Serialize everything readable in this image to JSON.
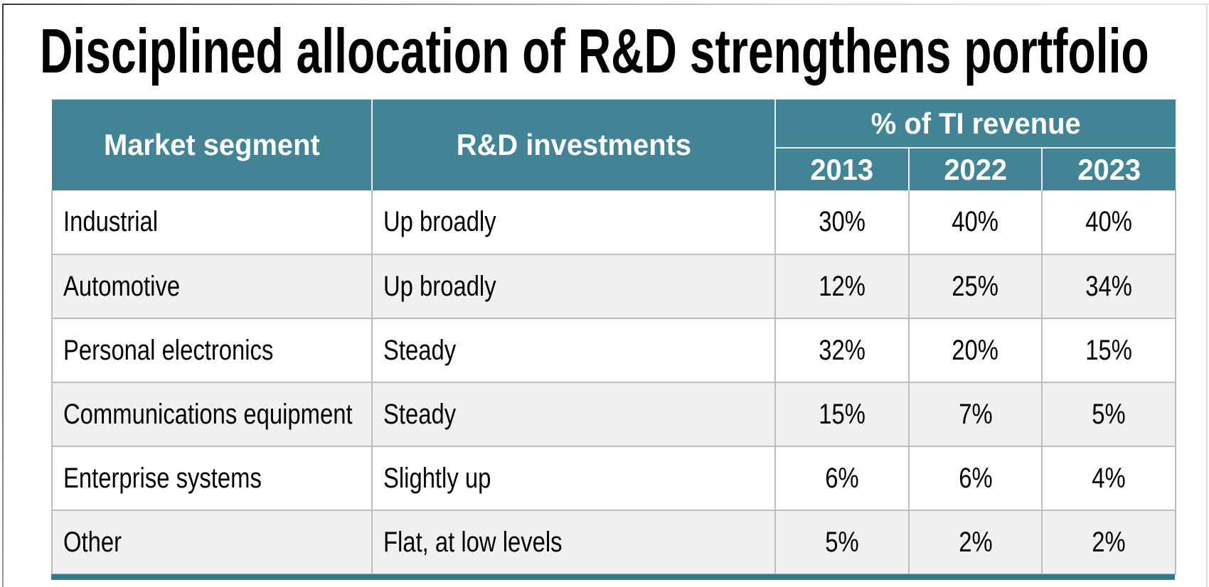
{
  "title": "Disciplined allocation of R&D strengthens portfolio",
  "table": {
    "header": {
      "market_segment": "Market segment",
      "rd_investments": "R&D investments",
      "revenue_group": "% of TI revenue",
      "years": [
        "2013",
        "2022",
        "2023"
      ]
    },
    "rows": [
      {
        "segment": "Industrial",
        "investment": "Up broadly",
        "values": [
          "30%",
          "40%",
          "40%"
        ]
      },
      {
        "segment": "Automotive",
        "investment": "Up broadly",
        "values": [
          "12%",
          "25%",
          "34%"
        ]
      },
      {
        "segment": "Personal electronics",
        "investment": "Steady",
        "values": [
          "32%",
          "20%",
          "15%"
        ]
      },
      {
        "segment": "Communications equipment",
        "investment": "Steady",
        "values": [
          "15%",
          "7%",
          "5%"
        ]
      },
      {
        "segment": "Enterprise systems",
        "investment": "Slightly up",
        "values": [
          "6%",
          "6%",
          "4%"
        ]
      },
      {
        "segment": "Other",
        "investment": "Flat, at low levels",
        "values": [
          "5%",
          "2%",
          "2%"
        ]
      }
    ]
  },
  "colors": {
    "header_teal": "#428396",
    "accent_bar_teal": "#37798C",
    "row_alt_gray": "#F0F0F0",
    "grid_line_gray": "#BDBDBD",
    "title_black": "#000000"
  }
}
